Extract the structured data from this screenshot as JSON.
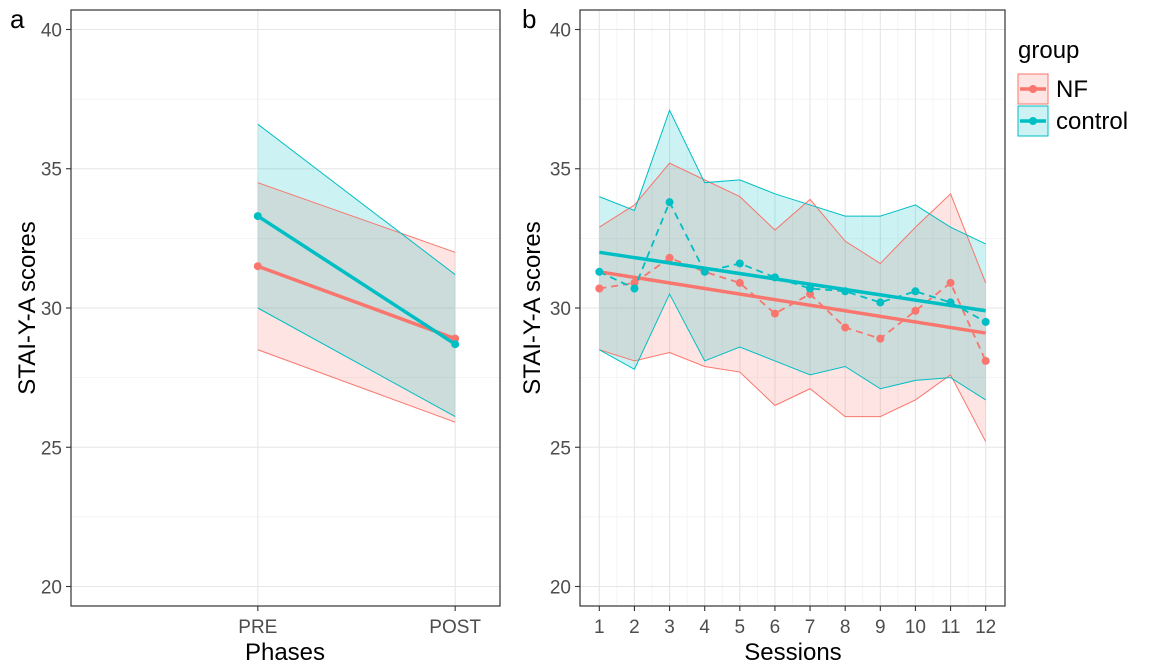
{
  "colors": {
    "NF": "#f8766d",
    "control": "#00bfc4"
  },
  "legend": {
    "title": "group",
    "items": [
      {
        "label": "NF",
        "color": "#f8766d"
      },
      {
        "label": "control",
        "color": "#00bfc4"
      }
    ]
  },
  "chart_data": [
    {
      "panel": "a",
      "type": "line",
      "xlabel": "Phases",
      "ylabel": "STAI-Y-A scores",
      "categories": [
        "PRE",
        "POST"
      ],
      "ylim": [
        19.3,
        40.7
      ],
      "yticks": [
        20,
        25,
        30,
        35,
        40
      ],
      "grid": true,
      "series": [
        {
          "name": "NF",
          "values": [
            31.5,
            28.9
          ],
          "ci_low": [
            28.5,
            25.9
          ],
          "ci_high": [
            34.5,
            32.0
          ]
        },
        {
          "name": "control",
          "values": [
            33.3,
            28.7
          ],
          "ci_low": [
            30.0,
            26.1
          ],
          "ci_high": [
            36.6,
            31.2
          ]
        }
      ]
    },
    {
      "panel": "b",
      "type": "line",
      "xlabel": "Sessions",
      "ylabel": "STAI-Y-A scores",
      "x": [
        1,
        2,
        3,
        4,
        5,
        6,
        7,
        8,
        9,
        10,
        11,
        12
      ],
      "ylim": [
        19.3,
        40.7
      ],
      "yticks": [
        20,
        25,
        30,
        35,
        40
      ],
      "grid": true,
      "series": [
        {
          "name": "NF",
          "values": [
            30.7,
            30.9,
            31.8,
            31.3,
            30.9,
            29.8,
            30.5,
            29.3,
            28.9,
            29.9,
            30.9,
            28.1
          ],
          "ci_low": [
            28.5,
            28.1,
            28.4,
            27.9,
            27.7,
            26.5,
            27.1,
            26.1,
            26.1,
            26.7,
            27.6,
            25.2
          ],
          "ci_high": [
            32.9,
            33.7,
            35.2,
            34.6,
            34.0,
            32.8,
            33.9,
            32.4,
            31.6,
            32.9,
            34.1,
            30.9
          ],
          "trend": [
            31.3,
            29.1
          ]
        },
        {
          "name": "control",
          "values": [
            31.3,
            30.7,
            33.8,
            31.3,
            31.6,
            31.1,
            30.7,
            30.6,
            30.2,
            30.6,
            30.2,
            29.5
          ],
          "ci_low": [
            28.5,
            27.8,
            30.5,
            28.1,
            28.6,
            28.1,
            27.6,
            27.9,
            27.1,
            27.4,
            27.5,
            26.7
          ],
          "ci_high": [
            34.0,
            33.5,
            37.1,
            34.5,
            34.6,
            34.1,
            33.7,
            33.3,
            33.3,
            33.7,
            32.9,
            32.3
          ],
          "trend": [
            32.0,
            29.9
          ]
        }
      ]
    }
  ]
}
